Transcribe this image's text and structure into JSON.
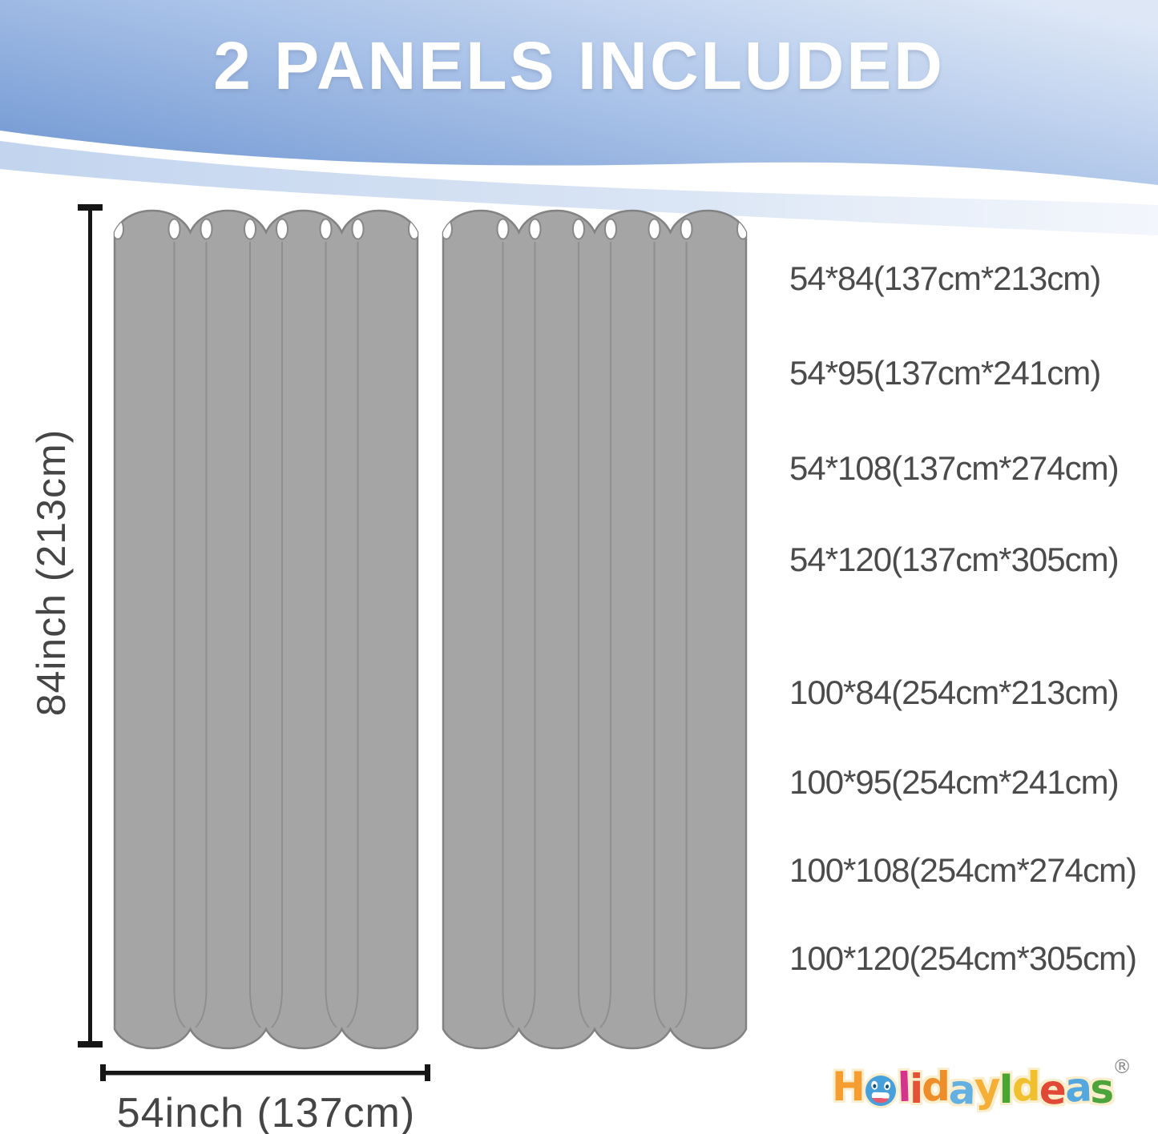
{
  "header": {
    "title": "2 PANELS INCLUDED"
  },
  "diagram": {
    "height_label": "84inch (213cm)",
    "width_label": "54inch (137cm)"
  },
  "sizes": {
    "group1": [
      "54*84(137cm*213cm)",
      "54*95(137cm*241cm)",
      "54*108(137cm*274cm)",
      "54*120(137cm*305cm)"
    ],
    "group2": [
      "100*84(254cm*213cm)",
      "100*95(254cm*241cm)",
      "100*108(254cm*274cm)",
      "100*120(254cm*305cm)"
    ]
  },
  "logo": {
    "name": "HolidayIdeas",
    "registered_mark": "®",
    "letters": [
      {
        "ch": "H",
        "color": "#F59D31"
      },
      {
        "ch": "o",
        "color": "#47A0DB",
        "face": true
      },
      {
        "ch": "l",
        "color": "#D6348C"
      },
      {
        "ch": "i",
        "color": "#E25234"
      },
      {
        "ch": "d",
        "color": "#EE8E2B"
      },
      {
        "ch": "a",
        "color": "#64B0E2"
      },
      {
        "ch": "y",
        "color": "#F5AE36"
      },
      {
        "ch": "I",
        "color": "#49A52F"
      },
      {
        "ch": "d",
        "color": "#F1C02F"
      },
      {
        "ch": "e",
        "color": "#DF4936"
      },
      {
        "ch": "a",
        "color": "#55A8DE"
      },
      {
        "ch": "s",
        "color": "#4EA43C"
      }
    ]
  },
  "colors": {
    "curtain_gray": "#a5a5a5",
    "curtain_outline": "#828282",
    "header_blue_left": "#7399d3",
    "header_blue_right": "#dde7f6",
    "dimension_line": "#161616",
    "label_text": "#454545"
  }
}
